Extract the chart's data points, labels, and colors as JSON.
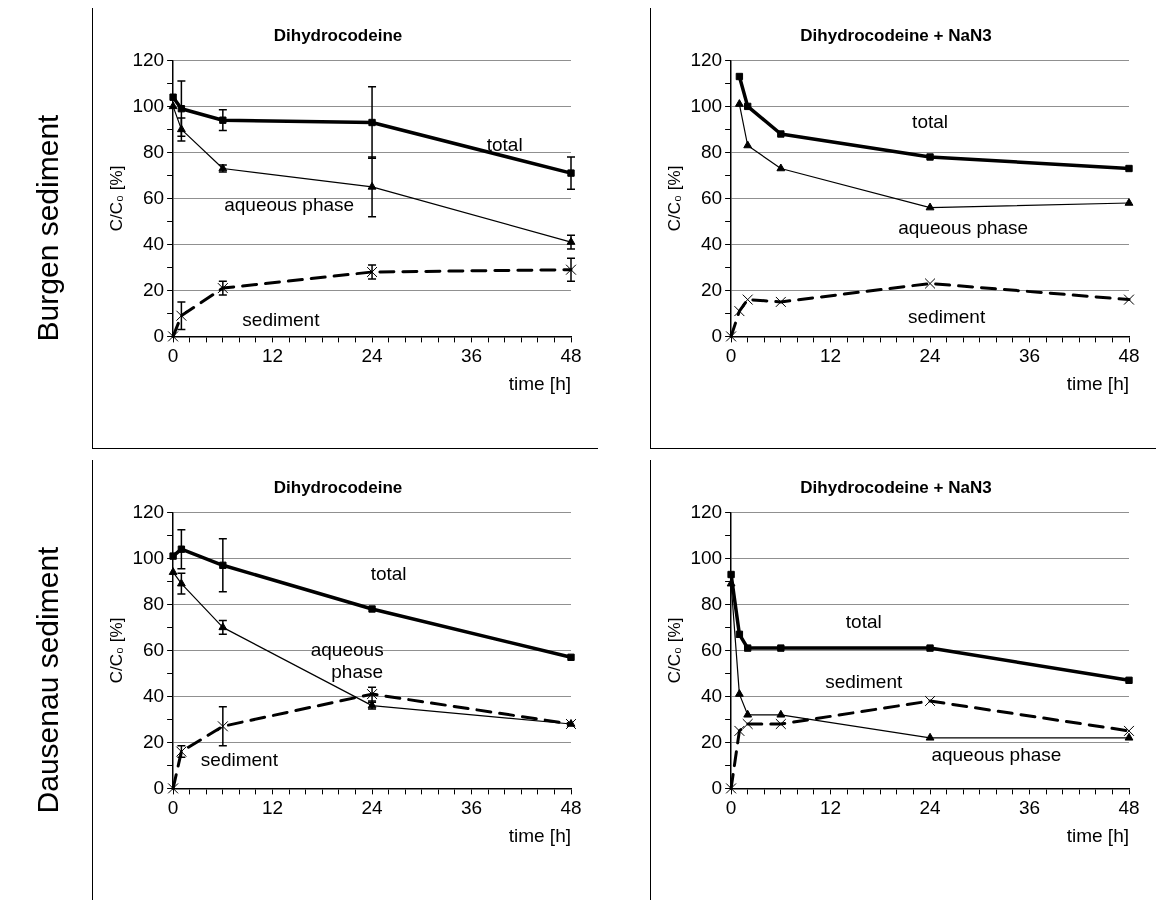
{
  "chart_data": [
    {
      "type": "line",
      "title": "Dihydrocodeine",
      "xlabel": "time [h]",
      "ylabel": "C/C₀ [%]",
      "annotations": [
        "Burgen sediment"
      ],
      "grid": "y",
      "legend": false,
      "xlim": [
        0,
        48
      ],
      "ylim": [
        0,
        120
      ],
      "xticks": [
        0,
        {
          "value": 2,
          "label": null
        },
        {
          "value": 4,
          "label": null
        },
        {
          "value": 6,
          "label": null
        },
        {
          "value": 8,
          "label": null
        },
        {
          "value": 10,
          "label": null
        },
        12,
        {
          "value": 14,
          "label": null
        },
        {
          "value": 16,
          "label": null
        },
        {
          "value": 18,
          "label": null
        },
        {
          "value": 20,
          "label": null
        },
        {
          "value": 22,
          "label": null
        },
        24,
        {
          "value": 26,
          "label": null
        },
        {
          "value": 28,
          "label": null
        },
        {
          "value": 30,
          "label": null
        },
        {
          "value": 32,
          "label": null
        },
        {
          "value": 34,
          "label": null
        },
        36,
        {
          "value": 38,
          "label": null
        },
        {
          "value": 40,
          "label": null
        },
        {
          "value": 42,
          "label": null
        },
        {
          "value": 44,
          "label": null
        },
        {
          "value": 46,
          "label": null
        },
        48
      ],
      "yticks": [
        0,
        {
          "value": 10,
          "label": null
        },
        20,
        {
          "value": 30,
          "label": null
        },
        40,
        {
          "value": 50,
          "label": null
        },
        60,
        {
          "value": 70,
          "label": null
        },
        80,
        {
          "value": 90,
          "label": null
        },
        100,
        {
          "value": 110,
          "label": null
        },
        120
      ],
      "series": [
        {
          "name": "total",
          "color": "#000000",
          "marker": "square",
          "line_style": "solid",
          "x": [
            0,
            1,
            6,
            24,
            48
          ],
          "values": [
            104,
            99,
            94,
            93,
            71
          ],
          "errors": [
            null,
            12,
            4.5,
            15.5,
            7
          ]
        },
        {
          "name": "aqueous phase",
          "color": "#000000",
          "marker": "triangle",
          "line_style": "solid",
          "x": [
            0,
            1,
            6,
            24,
            48
          ],
          "values": [
            100,
            90,
            73,
            65,
            41
          ],
          "errors": [
            null,
            5,
            1.5,
            13,
            3
          ]
        },
        {
          "name": "sediment",
          "color": "#000000",
          "marker": "cross",
          "line_style": "dashed",
          "x": [
            0,
            1,
            6,
            24,
            48
          ],
          "values": [
            0,
            9,
            21,
            28,
            29
          ],
          "errors": [
            null,
            6,
            3,
            3,
            5
          ]
        }
      ]
    },
    {
      "type": "line",
      "title": "Dihydrocodeine + NaN3",
      "xlabel": "time [h]",
      "ylabel": "C/C₀ [%]",
      "grid": "y",
      "legend": false,
      "xlim": [
        0,
        48
      ],
      "ylim": [
        0,
        120
      ],
      "xticks": [
        0,
        {
          "value": 2,
          "label": null
        },
        {
          "value": 4,
          "label": null
        },
        {
          "value": 6,
          "label": null
        },
        {
          "value": 8,
          "label": null
        },
        {
          "value": 10,
          "label": null
        },
        12,
        {
          "value": 14,
          "label": null
        },
        {
          "value": 16,
          "label": null
        },
        {
          "value": 18,
          "label": null
        },
        {
          "value": 20,
          "label": null
        },
        {
          "value": 22,
          "label": null
        },
        24,
        {
          "value": 26,
          "label": null
        },
        {
          "value": 28,
          "label": null
        },
        {
          "value": 30,
          "label": null
        },
        {
          "value": 32,
          "label": null
        },
        {
          "value": 34,
          "label": null
        },
        36,
        {
          "value": 38,
          "label": null
        },
        {
          "value": 40,
          "label": null
        },
        {
          "value": 42,
          "label": null
        },
        {
          "value": 44,
          "label": null
        },
        {
          "value": 46,
          "label": null
        },
        48
      ],
      "yticks": [
        0,
        {
          "value": 10,
          "label": null
        },
        20,
        {
          "value": 30,
          "label": null
        },
        40,
        {
          "value": 50,
          "label": null
        },
        60,
        {
          "value": 70,
          "label": null
        },
        80,
        {
          "value": 90,
          "label": null
        },
        100,
        {
          "value": 110,
          "label": null
        },
        120
      ],
      "series": [
        {
          "name": "total",
          "color": "#000000",
          "marker": "square",
          "line_style": "solid",
          "x": [
            1,
            2,
            6,
            24,
            48
          ],
          "values": [
            113,
            100,
            88,
            78,
            73
          ]
        },
        {
          "name": "aqueous phase",
          "color": "#000000",
          "marker": "triangle",
          "line_style": "solid",
          "x": [
            1,
            2,
            6,
            24,
            48
          ],
          "values": [
            101,
            83,
            73,
            56,
            58
          ]
        },
        {
          "name": "sediment",
          "color": "#000000",
          "marker": "cross",
          "line_style": "dashed",
          "x": [
            0,
            1,
            2,
            6,
            24,
            48
          ],
          "values": [
            0,
            11,
            16,
            15,
            23,
            16
          ]
        }
      ]
    },
    {
      "type": "line",
      "title": "Dihydrocodeine",
      "xlabel": "time [h]",
      "ylabel": "C/C₀ [%]",
      "annotations": [
        "Dausenau sediment"
      ],
      "grid": "y",
      "legend": false,
      "xlim": [
        0,
        48
      ],
      "ylim": [
        0,
        120
      ],
      "xticks": [
        0,
        {
          "value": 2,
          "label": null
        },
        {
          "value": 4,
          "label": null
        },
        {
          "value": 6,
          "label": null
        },
        {
          "value": 8,
          "label": null
        },
        {
          "value": 10,
          "label": null
        },
        12,
        {
          "value": 14,
          "label": null
        },
        {
          "value": 16,
          "label": null
        },
        {
          "value": 18,
          "label": null
        },
        {
          "value": 20,
          "label": null
        },
        {
          "value": 22,
          "label": null
        },
        24,
        {
          "value": 26,
          "label": null
        },
        {
          "value": 28,
          "label": null
        },
        {
          "value": 30,
          "label": null
        },
        {
          "value": 32,
          "label": null
        },
        {
          "value": 34,
          "label": null
        },
        36,
        {
          "value": 38,
          "label": null
        },
        {
          "value": 40,
          "label": null
        },
        {
          "value": 42,
          "label": null
        },
        {
          "value": 44,
          "label": null
        },
        {
          "value": 46,
          "label": null
        },
        48
      ],
      "yticks": [
        0,
        {
          "value": 10,
          "label": null
        },
        20,
        {
          "value": 30,
          "label": null
        },
        40,
        {
          "value": 50,
          "label": null
        },
        60,
        {
          "value": 70,
          "label": null
        },
        80,
        {
          "value": 90,
          "label": null
        },
        100,
        {
          "value": 110,
          "label": null
        },
        120
      ],
      "series": [
        {
          "name": "total",
          "color": "#000000",
          "marker": "square",
          "line_style": "solid",
          "x": [
            0,
            1,
            6,
            24,
            48
          ],
          "values": [
            101,
            104,
            97,
            78,
            57
          ],
          "errors": [
            null,
            8.5,
            11.5,
            null,
            null
          ]
        },
        {
          "name": "aqueous phase",
          "color": "#000000",
          "marker": "triangle",
          "line_style": "solid",
          "x": [
            0,
            1,
            6,
            24,
            48
          ],
          "values": [
            94,
            89,
            70,
            36,
            28
          ],
          "errors": [
            null,
            4.5,
            3,
            1.5,
            null
          ]
        },
        {
          "name": "sediment",
          "color": "#000000",
          "marker": "cross",
          "line_style": "dashed",
          "x": [
            0,
            1,
            6,
            24,
            48
          ],
          "values": [
            0,
            16,
            27,
            41,
            28
          ],
          "errors": [
            null,
            2.5,
            8.5,
            3,
            null
          ]
        }
      ]
    },
    {
      "type": "line",
      "title": "Dihydrocodeine + NaN3",
      "xlabel": "time [h]",
      "ylabel": "C/C₀ [%]",
      "grid": "y",
      "legend": false,
      "xlim": [
        0,
        48
      ],
      "ylim": [
        0,
        120
      ],
      "xticks": [
        0,
        {
          "value": 2,
          "label": null
        },
        {
          "value": 4,
          "label": null
        },
        {
          "value": 6,
          "label": null
        },
        {
          "value": 8,
          "label": null
        },
        {
          "value": 10,
          "label": null
        },
        12,
        {
          "value": 14,
          "label": null
        },
        {
          "value": 16,
          "label": null
        },
        {
          "value": 18,
          "label": null
        },
        {
          "value": 20,
          "label": null
        },
        {
          "value": 22,
          "label": null
        },
        24,
        {
          "value": 26,
          "label": null
        },
        {
          "value": 28,
          "label": null
        },
        {
          "value": 30,
          "label": null
        },
        {
          "value": 32,
          "label": null
        },
        {
          "value": 34,
          "label": null
        },
        36,
        {
          "value": 38,
          "label": null
        },
        {
          "value": 40,
          "label": null
        },
        {
          "value": 42,
          "label": null
        },
        {
          "value": 44,
          "label": null
        },
        {
          "value": 46,
          "label": null
        },
        48
      ],
      "yticks": [
        0,
        {
          "value": 10,
          "label": null
        },
        20,
        {
          "value": 30,
          "label": null
        },
        40,
        {
          "value": 50,
          "label": null
        },
        60,
        {
          "value": 70,
          "label": null
        },
        80,
        {
          "value": 90,
          "label": null
        },
        100,
        {
          "value": 110,
          "label": null
        },
        120
      ],
      "series": [
        {
          "name": "total",
          "color": "#000000",
          "marker": "square",
          "line_style": "solid",
          "x": [
            0,
            1,
            2,
            6,
            24,
            48
          ],
          "values": [
            93,
            67,
            61,
            61,
            61,
            47
          ]
        },
        {
          "name": "aqueous phase",
          "color": "#000000",
          "marker": "triangle",
          "line_style": "solid",
          "x": [
            0,
            1,
            2,
            6,
            24,
            48
          ],
          "values": [
            89,
            41,
            32,
            32,
            22,
            22
          ]
        },
        {
          "name": "sediment",
          "color": "#000000",
          "marker": "cross",
          "line_style": "dashed",
          "x": [
            0,
            1,
            2,
            6,
            24,
            48
          ],
          "values": [
            0,
            25,
            28,
            28,
            38,
            25
          ]
        }
      ]
    }
  ]
}
